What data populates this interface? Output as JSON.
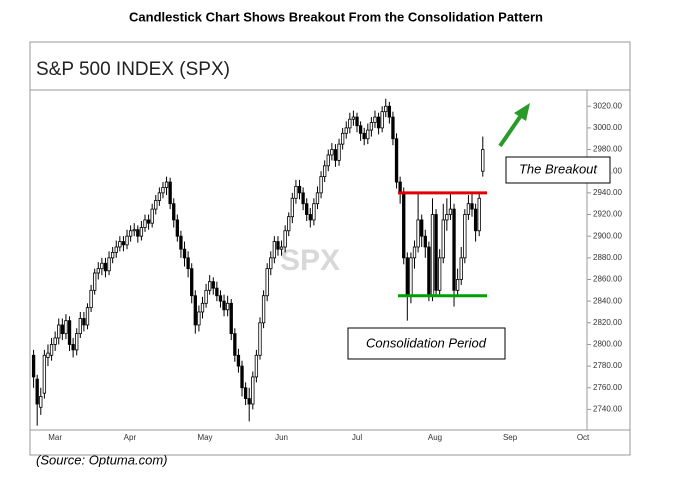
{
  "chart_data": {
    "type": "candlestick",
    "title": "Candlestick Chart Shows Breakout From the Consolidation Pattern",
    "subtitle": "S&P 500 INDEX (SPX)",
    "watermark": "SPX",
    "source": "(Source: Optuma.com)",
    "up_color": "#ffffff",
    "down_color": "#000000",
    "ylim": [
      2721,
      3035
    ],
    "yticks": [
      {
        "value": 2740,
        "label": "2740.00"
      },
      {
        "value": 2760,
        "label": "2760.00"
      },
      {
        "value": 2780,
        "label": "2780.00"
      },
      {
        "value": 2800,
        "label": "2800.00"
      },
      {
        "value": 2820,
        "label": "2820.00"
      },
      {
        "value": 2840,
        "label": "2840.00"
      },
      {
        "value": 2860,
        "label": "2860.00"
      },
      {
        "value": 2880,
        "label": "2880.00"
      },
      {
        "value": 2900,
        "label": "2900.00"
      },
      {
        "value": 2920,
        "label": "2920.00"
      },
      {
        "value": 2940,
        "label": "2940.00"
      },
      {
        "value": 2960,
        "label": "2960.00"
      },
      {
        "value": 2980,
        "label": "2980.00"
      },
      {
        "value": 3000,
        "label": "3000.00"
      },
      {
        "value": 3020,
        "label": "3020.00"
      }
    ],
    "xlim": [
      -1,
      154
    ],
    "xticks": [
      {
        "value": 6,
        "label": "Mar"
      },
      {
        "value": 26.8,
        "label": "Apr"
      },
      {
        "value": 47.7,
        "label": "May"
      },
      {
        "value": 69,
        "label": "Jun"
      },
      {
        "value": 90,
        "label": "Jul"
      },
      {
        "value": 111.7,
        "label": "Aug"
      },
      {
        "value": 132.6,
        "label": "Sep"
      },
      {
        "value": 152.9,
        "label": "Oct"
      }
    ],
    "ohlc": [
      [
        2790,
        2795,
        2760,
        2770
      ],
      [
        2768,
        2772,
        2725,
        2745
      ],
      [
        2742,
        2760,
        2735,
        2752
      ],
      [
        2755,
        2795,
        2750,
        2790
      ],
      [
        2788,
        2800,
        2780,
        2792
      ],
      [
        2790,
        2806,
        2785,
        2800
      ],
      [
        2800,
        2812,
        2794,
        2806
      ],
      [
        2806,
        2824,
        2800,
        2818
      ],
      [
        2818,
        2824,
        2804,
        2810
      ],
      [
        2810,
        2828,
        2805,
        2822
      ],
      [
        2822,
        2826,
        2794,
        2800
      ],
      [
        2800,
        2806,
        2788,
        2795
      ],
      [
        2795,
        2815,
        2790,
        2810
      ],
      [
        2810,
        2830,
        2806,
        2824
      ],
      [
        2824,
        2830,
        2812,
        2818
      ],
      [
        2818,
        2838,
        2814,
        2834
      ],
      [
        2834,
        2855,
        2830,
        2850
      ],
      [
        2850,
        2870,
        2846,
        2866
      ],
      [
        2866,
        2876,
        2860,
        2870
      ],
      [
        2870,
        2880,
        2864,
        2875
      ],
      [
        2875,
        2880,
        2862,
        2868
      ],
      [
        2868,
        2886,
        2864,
        2880
      ],
      [
        2880,
        2890,
        2875,
        2885
      ],
      [
        2885,
        2896,
        2880,
        2890
      ],
      [
        2890,
        2900,
        2886,
        2895
      ],
      [
        2895,
        2900,
        2886,
        2892
      ],
      [
        2892,
        2906,
        2888,
        2900
      ],
      [
        2900,
        2910,
        2895,
        2905
      ],
      [
        2905,
        2912,
        2900,
        2906
      ],
      [
        2906,
        2910,
        2894,
        2900
      ],
      [
        2900,
        2914,
        2896,
        2908
      ],
      [
        2908,
        2920,
        2904,
        2915
      ],
      [
        2915,
        2920,
        2906,
        2912
      ],
      [
        2912,
        2930,
        2908,
        2925
      ],
      [
        2925,
        2938,
        2920,
        2933
      ],
      [
        2933,
        2945,
        2928,
        2940
      ],
      [
        2940,
        2950,
        2935,
        2945
      ],
      [
        2945,
        2955,
        2938,
        2950
      ],
      [
        2950,
        2954,
        2925,
        2930
      ],
      [
        2930,
        2935,
        2908,
        2915
      ],
      [
        2915,
        2920,
        2895,
        2900
      ],
      [
        2900,
        2905,
        2880,
        2888
      ],
      [
        2888,
        2895,
        2872,
        2880
      ],
      [
        2880,
        2886,
        2862,
        2870
      ],
      [
        2870,
        2875,
        2838,
        2845
      ],
      [
        2845,
        2850,
        2810,
        2818
      ],
      [
        2818,
        2836,
        2812,
        2830
      ],
      [
        2830,
        2844,
        2824,
        2838
      ],
      [
        2838,
        2856,
        2834,
        2850
      ],
      [
        2850,
        2864,
        2846,
        2858
      ],
      [
        2858,
        2862,
        2846,
        2852
      ],
      [
        2852,
        2858,
        2840,
        2845
      ],
      [
        2845,
        2850,
        2834,
        2840
      ],
      [
        2840,
        2846,
        2826,
        2832
      ],
      [
        2832,
        2845,
        2826,
        2838
      ],
      [
        2838,
        2842,
        2804,
        2810
      ],
      [
        2810,
        2815,
        2784,
        2790
      ],
      [
        2790,
        2796,
        2774,
        2780
      ],
      [
        2780,
        2785,
        2752,
        2760
      ],
      [
        2760,
        2765,
        2744,
        2750
      ],
      [
        2750,
        2760,
        2729,
        2745
      ],
      [
        2745,
        2775,
        2740,
        2770
      ],
      [
        2770,
        2795,
        2765,
        2790
      ],
      [
        2790,
        2825,
        2786,
        2820
      ],
      [
        2820,
        2850,
        2815,
        2845
      ],
      [
        2845,
        2875,
        2840,
        2870
      ],
      [
        2870,
        2886,
        2864,
        2880
      ],
      [
        2880,
        2900,
        2875,
        2895
      ],
      [
        2895,
        2900,
        2882,
        2888
      ],
      [
        2888,
        2896,
        2882,
        2890
      ],
      [
        2890,
        2910,
        2885,
        2905
      ],
      [
        2905,
        2922,
        2900,
        2918
      ],
      [
        2918,
        2940,
        2912,
        2935
      ],
      [
        2935,
        2952,
        2930,
        2946
      ],
      [
        2946,
        2952,
        2934,
        2940
      ],
      [
        2940,
        2945,
        2924,
        2930
      ],
      [
        2930,
        2935,
        2914,
        2920
      ],
      [
        2920,
        2926,
        2908,
        2915
      ],
      [
        2915,
        2935,
        2910,
        2930
      ],
      [
        2930,
        2946,
        2925,
        2940
      ],
      [
        2940,
        2960,
        2935,
        2955
      ],
      [
        2955,
        2970,
        2950,
        2965
      ],
      [
        2965,
        2980,
        2960,
        2975
      ],
      [
        2975,
        2986,
        2970,
        2980
      ],
      [
        2980,
        2985,
        2964,
        2970
      ],
      [
        2970,
        2990,
        2965,
        2985
      ],
      [
        2985,
        3000,
        2980,
        2995
      ],
      [
        2995,
        3006,
        2990,
        3000
      ],
      [
        3000,
        3014,
        2995,
        3008
      ],
      [
        3008,
        3016,
        3002,
        3010
      ],
      [
        3010,
        3014,
        2996,
        3002
      ],
      [
        3002,
        3006,
        2988,
        2995
      ],
      [
        2995,
        3000,
        2984,
        2990
      ],
      [
        2990,
        3004,
        2985,
        2998
      ],
      [
        2998,
        3010,
        2992,
        3005
      ],
      [
        3005,
        3016,
        3000,
        3010
      ],
      [
        3010,
        3014,
        2994,
        3000
      ],
      [
        3000,
        3020,
        2996,
        3015
      ],
      [
        3015,
        3027,
        3010,
        3020
      ],
      [
        3020,
        3024,
        3004,
        3010
      ],
      [
        3010,
        3015,
        2984,
        2990
      ],
      [
        2990,
        2995,
        2944,
        2950
      ],
      [
        2950,
        2955,
        2930,
        2940
      ],
      [
        2940,
        2945,
        2874,
        2880
      ],
      [
        2880,
        2885,
        2822,
        2845
      ],
      [
        2845,
        2885,
        2838,
        2880
      ],
      [
        2880,
        2896,
        2870,
        2890
      ],
      [
        2890,
        2940,
        2885,
        2915
      ],
      [
        2915,
        2920,
        2890,
        2900
      ],
      [
        2900,
        2906,
        2880,
        2890
      ],
      [
        2890,
        2895,
        2840,
        2845
      ],
      [
        2845,
        2935,
        2840,
        2920
      ],
      [
        2920,
        2925,
        2845,
        2850
      ],
      [
        2850,
        2888,
        2845,
        2880
      ],
      [
        2880,
        2930,
        2875,
        2915
      ],
      [
        2915,
        2935,
        2905,
        2920
      ],
      [
        2920,
        2940,
        2915,
        2925
      ],
      [
        2925,
        2930,
        2835,
        2850
      ],
      [
        2850,
        2870,
        2845,
        2860
      ],
      [
        2860,
        2890,
        2855,
        2880
      ],
      [
        2880,
        2925,
        2875,
        2920
      ],
      [
        2920,
        2938,
        2915,
        2930
      ],
      [
        2930,
        2940,
        2918,
        2925
      ],
      [
        2925,
        2930,
        2895,
        2905
      ],
      [
        2905,
        2940,
        2900,
        2935
      ],
      [
        2960,
        2992,
        2955,
        2980
      ]
    ],
    "levels": [
      {
        "value": 2940,
        "color": "#e00000"
      },
      {
        "value": 2845,
        "color": "#00a000"
      }
    ],
    "annotations": [
      "The Breakout",
      "Consolidation Period"
    ]
  }
}
